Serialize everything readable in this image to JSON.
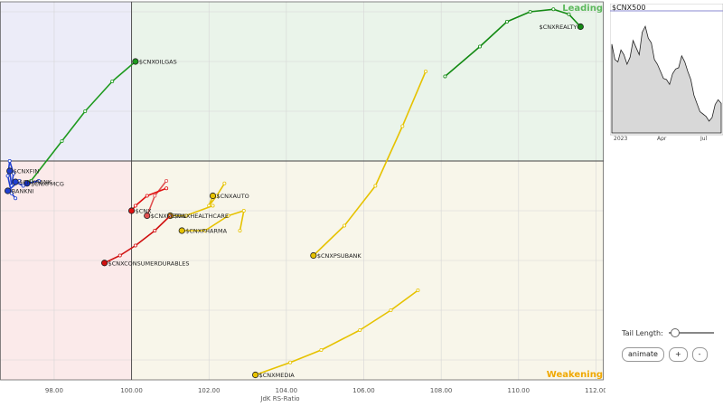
{
  "chart_data": {
    "type": "scatter",
    "xlabel": "JdK RS-Ratio",
    "x_ticks": [
      "98.00",
      "100.00",
      "102.00",
      "104.00",
      "106.00",
      "108.00",
      "110.00",
      "112.00"
    ],
    "xlim": [
      96.6,
      112.2
    ],
    "ylim": [
      95.6,
      103.2
    ],
    "quadrants": {
      "leading": {
        "label": "Leading",
        "color": "#5cb85c",
        "fill": "#eaf4ea"
      },
      "weakening": {
        "label": "Weakening",
        "color": "#f0a800",
        "fill": "#f8f6ea"
      },
      "lagging": {
        "fill": "#fbeaea"
      },
      "improving": {
        "fill": "#ececf8"
      }
    },
    "series": [
      {
        "name": "$CNXREALTY",
        "color": "#138a13",
        "tail": [
          [
            108.1,
            101.7
          ],
          [
            109.0,
            102.3
          ],
          [
            109.7,
            102.8
          ],
          [
            110.3,
            103.0
          ],
          [
            110.9,
            103.05
          ],
          [
            111.3,
            102.95
          ],
          [
            111.6,
            102.7
          ]
        ]
      },
      {
        "name": "$CNXOILGAS",
        "color": "#1e9a1e",
        "tail": [
          [
            97.4,
            99.6
          ],
          [
            98.2,
            100.4
          ],
          [
            98.8,
            101.0
          ],
          [
            99.5,
            101.6
          ],
          [
            100.1,
            102.0
          ]
        ]
      },
      {
        "name": "$CNXPSUBANK",
        "color": "#e6c200",
        "tail": [
          [
            107.6,
            101.8
          ],
          [
            107.0,
            100.7
          ],
          [
            106.3,
            99.5
          ],
          [
            105.5,
            98.7
          ],
          [
            104.7,
            98.1
          ]
        ]
      },
      {
        "name": "$CNXMEDIA",
        "color": "#e6c200",
        "tail": [
          [
            107.4,
            97.4
          ],
          [
            106.7,
            97.0
          ],
          [
            105.9,
            96.6
          ],
          [
            104.9,
            96.2
          ],
          [
            104.1,
            95.95
          ],
          [
            103.2,
            95.7
          ]
        ]
      },
      {
        "name": "$CNXAUTO",
        "color": "#e6c200",
        "tail": [
          [
            102.4,
            99.55
          ],
          [
            102.2,
            99.3
          ],
          [
            102.0,
            99.1
          ],
          [
            102.1,
            99.3
          ]
        ]
      },
      {
        "name": "$CNXHEALTHCARE",
        "color": "#e6c200",
        "tail": [
          [
            102.1,
            99.1
          ],
          [
            101.4,
            98.9
          ],
          [
            101.0,
            98.9
          ]
        ]
      },
      {
        "name": "$CNXPHARMA",
        "color": "#e6c200",
        "tail": [
          [
            102.8,
            98.6
          ],
          [
            102.9,
            99.0
          ],
          [
            102.5,
            98.9
          ],
          [
            101.9,
            98.6
          ],
          [
            101.3,
            98.6
          ]
        ]
      },
      {
        "name": "$CNXMETAL",
        "color": "#e05050",
        "tail": [
          [
            100.9,
            99.6
          ],
          [
            100.6,
            99.3
          ],
          [
            100.4,
            98.9
          ]
        ]
      },
      {
        "name": "$CNX",
        "color": "#e01010",
        "tail": [
          [
            100.9,
            99.45
          ],
          [
            100.4,
            99.3
          ],
          [
            100.1,
            99.1
          ],
          [
            100.0,
            99.0
          ]
        ]
      },
      {
        "name": "$CNXCONSUMERDURABLES",
        "color": "#d01010",
        "tail": [
          [
            101.0,
            98.9
          ],
          [
            100.6,
            98.6
          ],
          [
            100.1,
            98.3
          ],
          [
            99.7,
            98.1
          ],
          [
            99.3,
            97.95
          ]
        ]
      },
      {
        "name": "$CNXFMCG",
        "color": "#1530c0",
        "tail": [
          [
            97.6,
            99.6
          ],
          [
            97.3,
            99.55
          ]
        ]
      },
      {
        "name": "$CNXFIN",
        "color": "#2040d0",
        "tail": [
          [
            97.0,
            99.25
          ],
          [
            96.9,
            99.35
          ],
          [
            96.8,
            99.7
          ],
          [
            96.85,
            100.0
          ],
          [
            96.95,
            99.75
          ],
          [
            96.9,
            99.5
          ],
          [
            96.85,
            99.8
          ]
        ]
      },
      {
        "name": "BANKNI",
        "color": "#2040d0",
        "tail": [
          [
            97.1,
            99.6
          ],
          [
            96.8,
            99.4
          ]
        ]
      },
      {
        "name": "$CNXBANK",
        "color": "#2040d0",
        "tail": [
          [
            97.2,
            99.5
          ],
          [
            97.0,
            99.58
          ]
        ]
      }
    ]
  },
  "mini_chart": {
    "title": "$CNX500",
    "x_ticks": [
      "2023",
      "Apr",
      "Jul"
    ],
    "values": [
      0.75,
      0.62,
      0.6,
      0.7,
      0.66,
      0.58,
      0.64,
      0.78,
      0.72,
      0.66,
      0.85,
      0.9,
      0.8,
      0.76,
      0.62,
      0.58,
      0.52,
      0.46,
      0.45,
      0.41,
      0.5,
      0.54,
      0.55,
      0.65,
      0.6,
      0.52,
      0.45,
      0.32,
      0.25,
      0.18,
      0.16,
      0.14,
      0.1,
      0.13,
      0.24,
      0.28,
      0.25
    ]
  },
  "controls": {
    "tail_length_label": "Tail Length:",
    "animate_label": "animate",
    "plus_label": "+",
    "minus_label": "-"
  }
}
